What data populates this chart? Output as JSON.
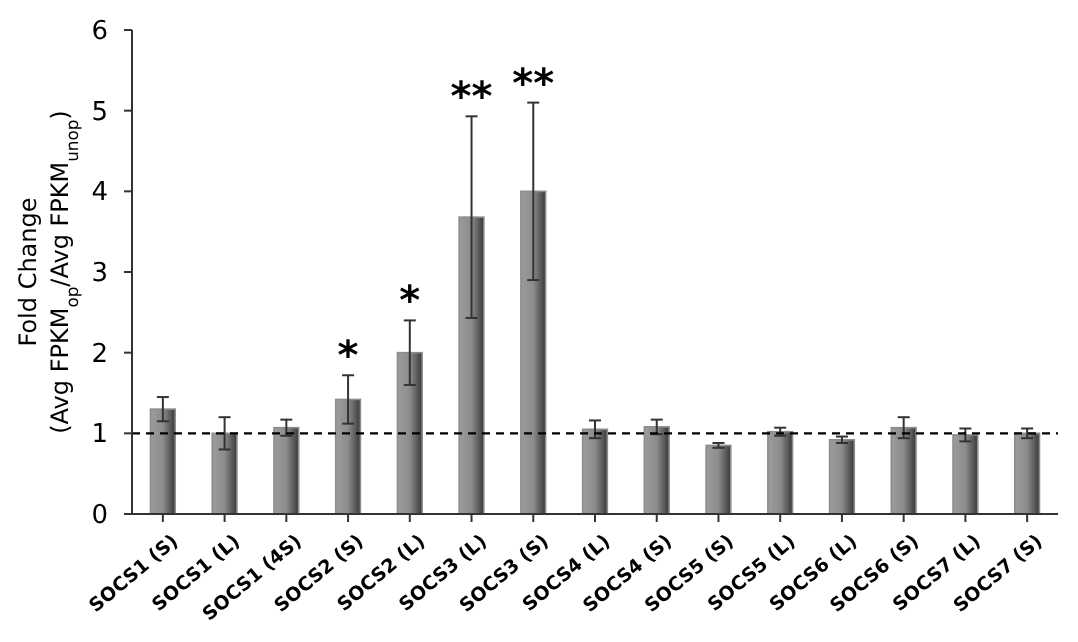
{
  "chart_data": {
    "type": "bar",
    "ylabel": "Fold Change\n(Avg FPKM$_{op}$/Avg FPKM$_{unop}$)",
    "categories": [
      "SOCS1 (S)",
      "SOCS1 (L)",
      "SOCS1 (4S)",
      "SOCS2 (S)",
      "SOCS2 (L)",
      "SOCS3  (L)",
      "SOCS3  (S)",
      "SOCS4 (L)",
      "SOCS4 (S)",
      "SOCS5 (S)",
      "SOCS5 (L)",
      "SOCS6 (L)",
      "SOCS6 (S)",
      "SOCS7 (L)",
      "SOCS7 (S)"
    ],
    "values": [
      1.3,
      1.0,
      1.07,
      1.42,
      2.0,
      3.68,
      4.0,
      1.05,
      1.08,
      0.85,
      1.02,
      0.92,
      1.07,
      0.98,
      1.0
    ],
    "errors": [
      0.15,
      0.2,
      0.1,
      0.3,
      0.4,
      1.25,
      1.1,
      0.11,
      0.09,
      0.03,
      0.05,
      0.04,
      0.13,
      0.08,
      0.06
    ],
    "color": "#8c8c8c",
    "ylim": [
      0,
      6
    ],
    "yticks": [
      0,
      1,
      2,
      3,
      4,
      5,
      6
    ],
    "ref_lines": [
      {
        "axis": "y",
        "value": 1,
        "line_style": "dashed",
        "color": "#000000"
      }
    ],
    "annotations": [
      {
        "text": "*",
        "x": "SOCS2 (S)",
        "y": 1.72
      },
      {
        "text": "*",
        "x": "SOCS2 (L)",
        "y": 2.4
      },
      {
        "text": "**",
        "x": "SOCS3  (L)",
        "y": 4.93
      },
      {
        "text": "**",
        "x": "SOCS3  (S)",
        "y": 5.1
      }
    ],
    "grid": false
  }
}
